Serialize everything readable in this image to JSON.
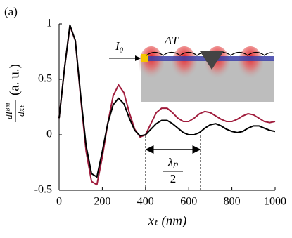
{
  "panel_label": "(a)",
  "chart_data": {
    "type": "line",
    "x_label": "xₜ (nm)",
    "y_label_numerator": "dIᴮᴹ",
    "y_label_denominator": "dxₜ",
    "y_label_unit": "(a. u.)",
    "annotations": {
      "source": "I₀",
      "heating": "ΔT",
      "period_numerator": "λₚ",
      "period_denominator": "2"
    },
    "x": [
      0,
      25,
      50,
      75,
      100,
      125,
      150,
      175,
      200,
      225,
      250,
      275,
      300,
      325,
      350,
      375,
      400,
      425,
      450,
      475,
      500,
      525,
      550,
      575,
      600,
      625,
      650,
      675,
      700,
      725,
      750,
      775,
      800,
      825,
      850,
      875,
      900,
      925,
      950,
      975,
      1000
    ],
    "series": [
      {
        "color": "#a01c3c",
        "values": [
          0.15,
          0.6,
          0.98,
          0.85,
          0.33,
          -0.15,
          -0.42,
          -0.45,
          -0.2,
          0.1,
          0.35,
          0.45,
          0.38,
          0.2,
          0.05,
          -0.02,
          0.0,
          0.1,
          0.2,
          0.24,
          0.24,
          0.2,
          0.15,
          0.12,
          0.12,
          0.15,
          0.19,
          0.21,
          0.2,
          0.17,
          0.14,
          0.12,
          0.12,
          0.14,
          0.17,
          0.19,
          0.18,
          0.15,
          0.12,
          0.11,
          0.12
        ]
      },
      {
        "color": "#000000",
        "values": [
          0.15,
          0.6,
          0.99,
          0.85,
          0.35,
          -0.1,
          -0.35,
          -0.38,
          -0.15,
          0.1,
          0.27,
          0.33,
          0.28,
          0.15,
          0.04,
          -0.01,
          0.0,
          0.05,
          0.1,
          0.13,
          0.13,
          0.1,
          0.06,
          0.02,
          0.0,
          0.0,
          0.02,
          0.06,
          0.09,
          0.1,
          0.08,
          0.05,
          0.03,
          0.02,
          0.03,
          0.06,
          0.08,
          0.08,
          0.06,
          0.04,
          0.03
        ]
      }
    ],
    "xlim": [
      0,
      1000
    ],
    "ylim": [
      -0.5,
      1
    ],
    "xticks": [
      0,
      200,
      400,
      600,
      800,
      1000
    ],
    "yticks": [
      -0.5,
      0,
      0.5,
      1
    ]
  }
}
